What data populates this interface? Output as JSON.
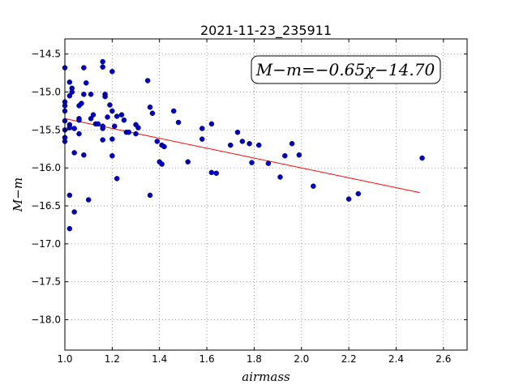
{
  "chart_data": {
    "type": "scatter",
    "title": "2021-11-23_235911",
    "xlabel": "airmass",
    "ylabel": "M−m",
    "annotation": "M−m=−0.65χ−14.70",
    "xlim": [
      1.0,
      2.7
    ],
    "ylim": [
      -18.4,
      -14.3
    ],
    "y_inverted": true,
    "grid": true,
    "x_ticks": [
      "1.0",
      "1.2",
      "1.4",
      "1.6",
      "1.8",
      "2.0",
      "2.2",
      "2.4",
      "2.6"
    ],
    "x_tick_values": [
      1.0,
      1.2,
      1.4,
      1.6,
      1.8,
      2.0,
      2.2,
      2.4,
      2.6
    ],
    "y_ticks": [
      "−14.5",
      "−15.0",
      "−15.5",
      "−16.0",
      "−16.5",
      "−17.0",
      "−17.5",
      "−18.0"
    ],
    "y_tick_values": [
      -14.5,
      -15.0,
      -15.5,
      -16.0,
      -16.5,
      -17.0,
      -17.5,
      -18.0
    ],
    "colors": {
      "points": "#0000cc",
      "fit": "#ff0000",
      "grid": "#888888"
    },
    "fit_line": {
      "slope": -0.65,
      "intercept": -14.7,
      "x_range": [
        1.0,
        2.5
      ]
    },
    "series": [
      {
        "points": [
          [
            1.0,
            -14.68
          ],
          [
            1.0,
            -15.13
          ],
          [
            1.0,
            -15.18
          ],
          [
            1.0,
            -15.25
          ],
          [
            1.0,
            -15.38
          ],
          [
            1.0,
            -15.5
          ],
          [
            1.0,
            -15.6
          ],
          [
            1.0,
            -15.65
          ],
          [
            1.02,
            -14.87
          ],
          [
            1.02,
            -15.05
          ],
          [
            1.02,
            -15.43
          ],
          [
            1.02,
            -15.47
          ],
          [
            1.02,
            -16.36
          ],
          [
            1.02,
            -16.8
          ],
          [
            1.03,
            -14.95
          ],
          [
            1.03,
            -15.0
          ],
          [
            1.04,
            -15.48
          ],
          [
            1.04,
            -15.8
          ],
          [
            1.04,
            -16.58
          ],
          [
            1.06,
            -15.18
          ],
          [
            1.06,
            -15.35
          ],
          [
            1.06,
            -15.37
          ],
          [
            1.06,
            -15.55
          ],
          [
            1.07,
            -15.15
          ],
          [
            1.08,
            -14.68
          ],
          [
            1.08,
            -15.03
          ],
          [
            1.08,
            -15.83
          ],
          [
            1.09,
            -14.88
          ],
          [
            1.1,
            -16.42
          ],
          [
            1.11,
            -15.03
          ],
          [
            1.11,
            -15.35
          ],
          [
            1.12,
            -15.3
          ],
          [
            1.13,
            -15.42
          ],
          [
            1.14,
            -15.42
          ],
          [
            1.16,
            -14.6
          ],
          [
            1.16,
            -14.67
          ],
          [
            1.16,
            -15.45
          ],
          [
            1.16,
            -15.48
          ],
          [
            1.16,
            -15.63
          ],
          [
            1.17,
            -15.03
          ],
          [
            1.17,
            -15.06
          ],
          [
            1.18,
            -15.33
          ],
          [
            1.19,
            -15.17
          ],
          [
            1.2,
            -14.73
          ],
          [
            1.2,
            -15.25
          ],
          [
            1.2,
            -15.62
          ],
          [
            1.2,
            -15.84
          ],
          [
            1.21,
            -15.45
          ],
          [
            1.22,
            -15.32
          ],
          [
            1.22,
            -16.14
          ],
          [
            1.24,
            -15.3
          ],
          [
            1.25,
            -15.37
          ],
          [
            1.26,
            -15.53
          ],
          [
            1.27,
            -15.53
          ],
          [
            1.3,
            -15.43
          ],
          [
            1.3,
            -15.55
          ],
          [
            1.31,
            -15.47
          ],
          [
            1.35,
            -14.85
          ],
          [
            1.36,
            -15.2
          ],
          [
            1.36,
            -16.36
          ],
          [
            1.37,
            -15.28
          ],
          [
            1.39,
            -15.65
          ],
          [
            1.4,
            -15.92
          ],
          [
            1.41,
            -15.95
          ],
          [
            1.41,
            -15.7
          ],
          [
            1.42,
            -15.72
          ],
          [
            1.46,
            -15.25
          ],
          [
            1.48,
            -15.4
          ],
          [
            1.52,
            -15.92
          ],
          [
            1.58,
            -15.48
          ],
          [
            1.58,
            -15.62
          ],
          [
            1.62,
            -15.42
          ],
          [
            1.62,
            -16.06
          ],
          [
            1.64,
            -16.07
          ],
          [
            1.7,
            -15.7
          ],
          [
            1.73,
            -15.53
          ],
          [
            1.75,
            -15.65
          ],
          [
            1.78,
            -15.68
          ],
          [
            1.79,
            -15.93
          ],
          [
            1.82,
            -15.7
          ],
          [
            1.86,
            -15.94
          ],
          [
            1.91,
            -16.12
          ],
          [
            1.93,
            -15.84
          ],
          [
            1.96,
            -15.68
          ],
          [
            1.99,
            -15.83
          ],
          [
            2.05,
            -16.24
          ],
          [
            2.2,
            -16.41
          ],
          [
            2.24,
            -16.34
          ],
          [
            2.51,
            -15.87
          ]
        ]
      }
    ]
  }
}
